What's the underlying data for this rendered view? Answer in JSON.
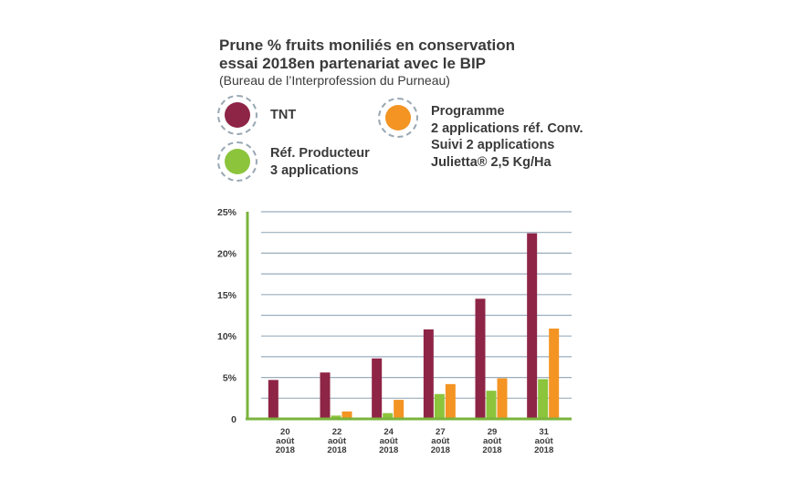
{
  "chart_data": {
    "type": "bar",
    "title_lines": [
      "Prune % fruits moniliés en conservation",
      "essai 2018en partenariat avec le BIP"
    ],
    "subtitle": "(Bureau de l’Interprofession du Purneau)",
    "categories": [
      [
        "20",
        "août",
        "2018"
      ],
      [
        "22",
        "août",
        "2018"
      ],
      [
        "24",
        "août",
        "2018"
      ],
      [
        "27",
        "août",
        "2018"
      ],
      [
        "29",
        "août",
        "2018"
      ],
      [
        "31",
        "août",
        "2018"
      ]
    ],
    "series": [
      {
        "name": "TNT",
        "color": "#8e2446",
        "values": [
          4.7,
          5.6,
          7.3,
          10.8,
          14.5,
          22.4
        ]
      },
      {
        "name": "Réf. Producteur\n3 applications",
        "color": "#8cc43c",
        "values": [
          null,
          0.4,
          0.7,
          3.0,
          3.4,
          4.8
        ]
      },
      {
        "name": "Programme\n2 applications réf. Conv.\nSuivi 2 applications\nJulietta® 2,5 Kg/Ha",
        "color": "#f39423",
        "values": [
          null,
          0.9,
          2.3,
          4.2,
          4.9,
          10.9
        ]
      }
    ],
    "ylim": [
      0,
      25
    ],
    "y_ticks": [
      0,
      5,
      10,
      15,
      20,
      25
    ],
    "y_tick_labels": [
      "0",
      "5%",
      "10%",
      "15%",
      "20%",
      "25%"
    ],
    "grid": true,
    "legend_position": "top",
    "colors": {
      "axis": "#7ab43c",
      "grid": "#9aaebd",
      "text": "#3a3a3a",
      "legend_ring": "#9aa8b4"
    }
  }
}
